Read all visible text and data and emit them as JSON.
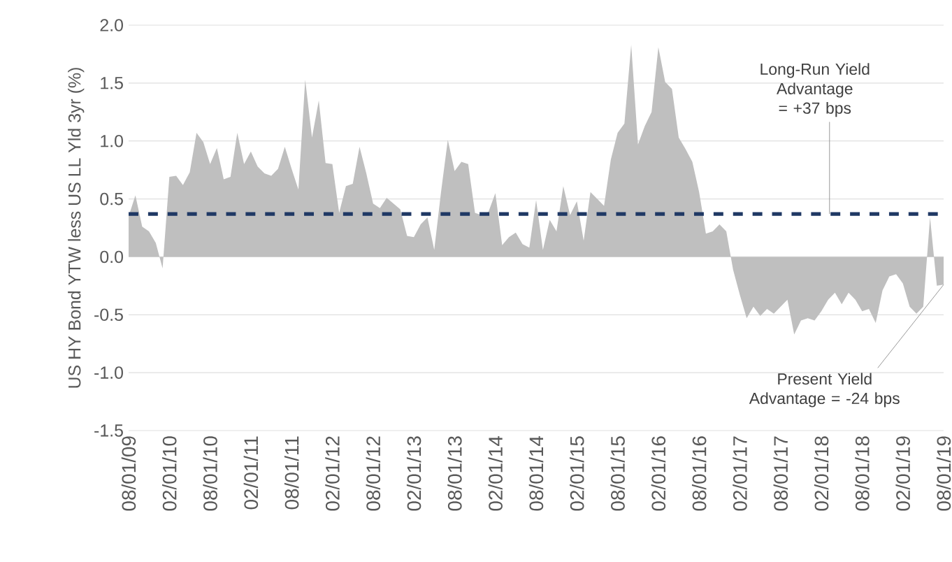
{
  "chart_data": {
    "type": "area",
    "ylabel": "US HY Bond YTW less US LL Yld 3yr (%)",
    "x": [
      "2009-08",
      "2009-09",
      "2009-10",
      "2009-11",
      "2009-12",
      "2010-01",
      "2010-02",
      "2010-03",
      "2010-04",
      "2010-05",
      "2010-06",
      "2010-07",
      "2010-08",
      "2010-09",
      "2010-10",
      "2010-11",
      "2010-12",
      "2011-01",
      "2011-02",
      "2011-03",
      "2011-04",
      "2011-05",
      "2011-06",
      "2011-07",
      "2011-08",
      "2011-09",
      "2011-10",
      "2011-11",
      "2011-12",
      "2012-01",
      "2012-02",
      "2012-03",
      "2012-04",
      "2012-05",
      "2012-06",
      "2012-07",
      "2012-08",
      "2012-09",
      "2012-10",
      "2012-11",
      "2012-12",
      "2013-01",
      "2013-02",
      "2013-03",
      "2013-04",
      "2013-05",
      "2013-06",
      "2013-07",
      "2013-08",
      "2013-09",
      "2013-10",
      "2013-11",
      "2013-12",
      "2014-01",
      "2014-02",
      "2014-03",
      "2014-04",
      "2014-05",
      "2014-06",
      "2014-07",
      "2014-08",
      "2014-09",
      "2014-10",
      "2014-11",
      "2014-12",
      "2015-01",
      "2015-02",
      "2015-03",
      "2015-04",
      "2015-05",
      "2015-06",
      "2015-07",
      "2015-08",
      "2015-09",
      "2015-10",
      "2015-11",
      "2015-12",
      "2016-01",
      "2016-02",
      "2016-03",
      "2016-04",
      "2016-05",
      "2016-06",
      "2016-07",
      "2016-08",
      "2016-09",
      "2016-10",
      "2016-11",
      "2016-12",
      "2017-01",
      "2017-02",
      "2017-03",
      "2017-04",
      "2017-05",
      "2017-06",
      "2017-07",
      "2017-08",
      "2017-09",
      "2017-10",
      "2017-11",
      "2017-12",
      "2018-01",
      "2018-02",
      "2018-03",
      "2018-04",
      "2018-05",
      "2018-06",
      "2018-07",
      "2018-08",
      "2018-09",
      "2018-10",
      "2018-11",
      "2018-12",
      "2019-01",
      "2019-02",
      "2019-03",
      "2019-04",
      "2019-05",
      "2019-06",
      "2019-07",
      "2019-08"
    ],
    "series": [
      {
        "color": "#bfbfbf",
        "values": [
          0.35,
          0.53,
          0.26,
          0.22,
          0.12,
          -0.1,
          0.69,
          0.7,
          0.62,
          0.73,
          1.07,
          0.99,
          0.8,
          0.94,
          0.67,
          0.69,
          1.07,
          0.8,
          0.91,
          0.78,
          0.72,
          0.7,
          0.76,
          0.95,
          0.76,
          0.58,
          1.53,
          1.03,
          1.35,
          0.81,
          0.8,
          0.38,
          0.61,
          0.63,
          0.95,
          0.72,
          0.46,
          0.42,
          0.51,
          0.46,
          0.41,
          0.18,
          0.17,
          0.28,
          0.34,
          0.06,
          0.56,
          1.01,
          0.74,
          0.82,
          0.8,
          0.38,
          0.36,
          0.39,
          0.55,
          0.1,
          0.17,
          0.21,
          0.11,
          0.08,
          0.49,
          0.06,
          0.32,
          0.22,
          0.61,
          0.36,
          0.48,
          0.14,
          0.56,
          0.5,
          0.44,
          0.84,
          1.07,
          1.15,
          1.83,
          0.97,
          1.13,
          1.25,
          1.81,
          1.51,
          1.45,
          1.03,
          0.93,
          0.82,
          0.56,
          0.2,
          0.22,
          0.28,
          0.22,
          -0.11,
          -0.33,
          -0.53,
          -0.43,
          -0.51,
          -0.45,
          -0.49,
          -0.43,
          -0.37,
          -0.67,
          -0.55,
          -0.53,
          -0.55,
          -0.47,
          -0.37,
          -0.31,
          -0.41,
          -0.31,
          -0.37,
          -0.47,
          -0.45,
          -0.57,
          -0.29,
          -0.17,
          -0.15,
          -0.23,
          -0.43,
          -0.49,
          -0.43,
          0.34,
          -0.25,
          -0.24
        ]
      }
    ],
    "xlim": [
      "2009-08",
      "2019-08"
    ],
    "xticks": [
      {
        "value": "2009-08",
        "label": "08/01/09"
      },
      {
        "value": "2010-02",
        "label": "02/01/10"
      },
      {
        "value": "2010-08",
        "label": "08/01/10"
      },
      {
        "value": "2011-02",
        "label": "02/01/11"
      },
      {
        "value": "2011-08",
        "label": "08/01/11"
      },
      {
        "value": "2012-02",
        "label": "02/01/12"
      },
      {
        "value": "2012-08",
        "label": "08/01/12"
      },
      {
        "value": "2013-02",
        "label": "02/01/13"
      },
      {
        "value": "2013-08",
        "label": "08/01/13"
      },
      {
        "value": "2014-02",
        "label": "02/01/14"
      },
      {
        "value": "2014-08",
        "label": "08/01/14"
      },
      {
        "value": "2015-02",
        "label": "02/01/15"
      },
      {
        "value": "2015-08",
        "label": "08/01/15"
      },
      {
        "value": "2016-02",
        "label": "02/01/16"
      },
      {
        "value": "2016-08",
        "label": "08/01/16"
      },
      {
        "value": "2017-02",
        "label": "02/01/17"
      },
      {
        "value": "2017-08",
        "label": "08/01/17"
      },
      {
        "value": "2018-02",
        "label": "02/01/18"
      },
      {
        "value": "2018-08",
        "label": "08/01/18"
      },
      {
        "value": "2019-02",
        "label": "02/01/19"
      },
      {
        "value": "2019-08",
        "label": "08/01/19"
      }
    ],
    "ylim": [
      -1.5,
      2.0
    ],
    "yticks": [
      {
        "value": -1.5,
        "label": "-1.5"
      },
      {
        "value": -1.0,
        "label": "-1.0"
      },
      {
        "value": -0.5,
        "label": "-0.5"
      },
      {
        "value": 0,
        "label": "0.0"
      },
      {
        "value": 0.5,
        "label": "0.5"
      },
      {
        "value": 1.0,
        "label": "1.0"
      },
      {
        "value": 1.5,
        "label": "1.5"
      },
      {
        "value": 2.0,
        "label": "2.0"
      }
    ],
    "grid": "y",
    "ref_lines": [
      {
        "axis": "y",
        "value": 0.37,
        "label": "Long-Run Yield Advantage = +37 bps",
        "color": "#1f3864",
        "line_style": "dashed"
      }
    ],
    "annotations": [
      {
        "text": "Present Yield Advantage = -24 bps",
        "x": "2019-08",
        "y": -0.24
      }
    ]
  }
}
